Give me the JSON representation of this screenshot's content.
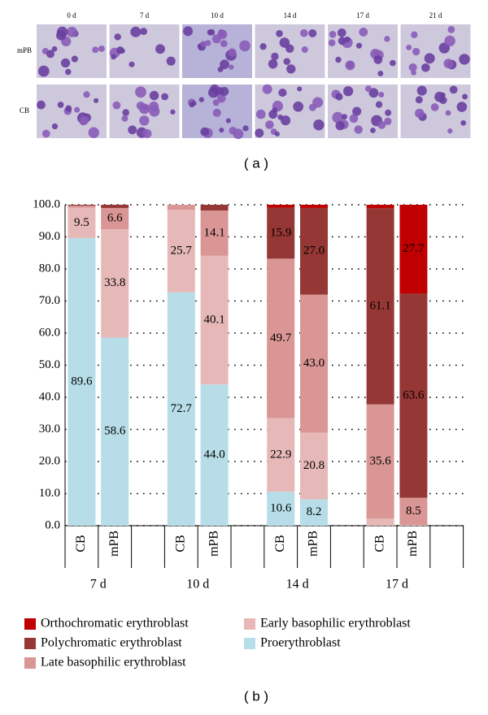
{
  "panel_a": {
    "columns": [
      "0 d",
      "7 d",
      "10 d",
      "14 d",
      "17 d",
      "21 d"
    ],
    "rows": [
      "mPB",
      "CB"
    ],
    "caption": "( a )"
  },
  "chart_data": {
    "type": "stacked-bar",
    "caption": "( b )",
    "categories": [
      "CB",
      "mPB",
      "CB",
      "mPB",
      "CB",
      "mPB",
      "CB",
      "mPB"
    ],
    "groups": [
      "7 d",
      "10 d",
      "14 d",
      "17 d"
    ],
    "series": [
      {
        "name": "Proerythroblast",
        "color": "#b7dee8",
        "values": [
          89.6,
          58.6,
          72.7,
          44.0,
          10.6,
          8.2,
          0,
          0
        ],
        "value_labels": [
          "89.6",
          "58.6",
          "72.7",
          "44.0",
          "10.6",
          "8.2",
          null,
          null
        ]
      },
      {
        "name": "Early basophilic erythroblast",
        "color": "#e6b9b8",
        "values": [
          9.5,
          33.8,
          25.7,
          40.1,
          22.9,
          20.8,
          2.2,
          0.2
        ],
        "value_labels": [
          "9.5",
          "33.8",
          "25.7",
          "40.1",
          "22.9",
          "20.8",
          null,
          null
        ]
      },
      {
        "name": "Late basophilic erythroblast",
        "color": "#d99694",
        "values": [
          0.6,
          6.6,
          1.6,
          14.1,
          49.7,
          43.0,
          35.6,
          8.5
        ],
        "value_labels": [
          null,
          "6.6",
          null,
          "14.1",
          "49.7",
          "43.0",
          "35.6",
          "8.5"
        ]
      },
      {
        "name": "Polychromatic erythroblast",
        "color": "#953735",
        "values": [
          0.3,
          1.0,
          0,
          1.8,
          15.9,
          27.0,
          61.1,
          63.6
        ],
        "value_labels": [
          null,
          null,
          null,
          null,
          "15.9",
          "27.0",
          "61.1",
          "63.6"
        ]
      },
      {
        "name": "Orthochromatic erythroblast",
        "color": "#c00000",
        "values": [
          0,
          0,
          0,
          0,
          0.9,
          1.0,
          1.1,
          27.7
        ],
        "value_labels": [
          null,
          null,
          null,
          null,
          null,
          null,
          null,
          "27.7"
        ]
      }
    ],
    "legend_order": [
      4,
      3,
      2,
      1,
      0
    ],
    "ylim": [
      0,
      100
    ],
    "yticks": [
      {
        "value": 0,
        "label": "0.0"
      },
      {
        "value": 10,
        "label": "10.0"
      },
      {
        "value": 20,
        "label": "20.0"
      },
      {
        "value": 30,
        "label": "30.0"
      },
      {
        "value": 40,
        "label": "40.0"
      },
      {
        "value": 50,
        "label": "50.0"
      },
      {
        "value": 60,
        "label": "60.0"
      },
      {
        "value": 70,
        "label": "70.0"
      },
      {
        "value": 80,
        "label": "80.0"
      },
      {
        "value": 90,
        "label": "90.0"
      },
      {
        "value": 100,
        "label": "100.0"
      }
    ],
    "grid": true
  }
}
